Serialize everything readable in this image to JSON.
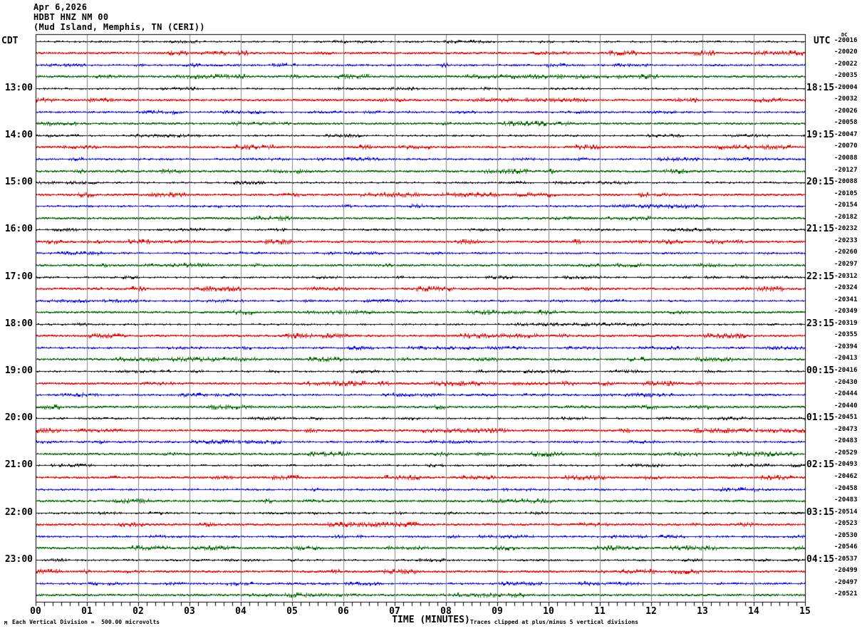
{
  "header": {
    "date": "Apr 6,2026",
    "station": "HDBT HNZ NM 00",
    "location": "(Mud Island, Memphis, TN (CERI))"
  },
  "axes": {
    "left_timezone_label": "CDT",
    "right_timezone_label": "UTC",
    "dc_column_label": "DC",
    "x_axis_title": "TIME (MINUTES)",
    "x_tick_labels": [
      "00",
      "01",
      "02",
      "03",
      "04",
      "05",
      "06",
      "07",
      "08",
      "09",
      "10",
      "11",
      "12",
      "13",
      "14",
      "15"
    ]
  },
  "footer": {
    "corner_mark": "M",
    "scale_note": "Each Vertical Division =  500.00 microvolts",
    "clip_note": "Traces clipped at plus/minus 5 vertical divisions"
  },
  "colors": {
    "background": "#ffffff",
    "frame": "#000000",
    "grid": "#808080",
    "trace_cycle": [
      "#000000",
      "#ee0000",
      "#0000ee",
      "#006400"
    ]
  },
  "chart_data": {
    "type": "line",
    "subtype": "helicorder-seismogram",
    "title": "HDBT HNZ NM 00 (Mud Island, Memphis, TN (CERI)) Apr 6,2026",
    "xlabel": "TIME (MINUTES)",
    "x_range_minutes": [
      0,
      15
    ],
    "minutes_per_row": 15,
    "grid": "vertical lines at each minute",
    "vertical_division_microvolts": 500.0,
    "clip_divisions": 5,
    "trace_color_cycle": [
      "black",
      "red",
      "blue",
      "green"
    ],
    "appearance": "48 quarter-hour rows of low-amplitude ambient noise; no large events visible",
    "left_labels_timezone": "CDT",
    "right_labels_timezone": "UTC",
    "rows": [
      {
        "dc": "-20016",
        "left": "",
        "right": ""
      },
      {
        "dc": "-20020",
        "left": "",
        "right": ""
      },
      {
        "dc": "-20022",
        "left": "",
        "right": ""
      },
      {
        "dc": "-20035",
        "left": "",
        "right": ""
      },
      {
        "dc": "-20004",
        "left": "13:00",
        "right": "18:15"
      },
      {
        "dc": "-20032",
        "left": "",
        "right": ""
      },
      {
        "dc": "-20026",
        "left": "",
        "right": ""
      },
      {
        "dc": "-20058",
        "left": "",
        "right": ""
      },
      {
        "dc": "-20047",
        "left": "14:00",
        "right": "19:15"
      },
      {
        "dc": "-20070",
        "left": "",
        "right": ""
      },
      {
        "dc": "-20088",
        "left": "",
        "right": ""
      },
      {
        "dc": "-20127",
        "left": "",
        "right": ""
      },
      {
        "dc": "-20088",
        "left": "15:00",
        "right": "20:15"
      },
      {
        "dc": "-20105",
        "left": "",
        "right": ""
      },
      {
        "dc": "-20154",
        "left": "",
        "right": ""
      },
      {
        "dc": "-20182",
        "left": "",
        "right": ""
      },
      {
        "dc": "-20232",
        "left": "16:00",
        "right": "21:15"
      },
      {
        "dc": "-20233",
        "left": "",
        "right": ""
      },
      {
        "dc": "-20260",
        "left": "",
        "right": ""
      },
      {
        "dc": "-20297",
        "left": "",
        "right": ""
      },
      {
        "dc": "-20312",
        "left": "17:00",
        "right": "22:15"
      },
      {
        "dc": "-20324",
        "left": "",
        "right": ""
      },
      {
        "dc": "-20341",
        "left": "",
        "right": ""
      },
      {
        "dc": "-20349",
        "left": "",
        "right": ""
      },
      {
        "dc": "-20319",
        "left": "18:00",
        "right": "23:15"
      },
      {
        "dc": "-20355",
        "left": "",
        "right": ""
      },
      {
        "dc": "-20394",
        "left": "",
        "right": ""
      },
      {
        "dc": "-20413",
        "left": "",
        "right": ""
      },
      {
        "dc": "-20416",
        "left": "19:00",
        "right": "00:15"
      },
      {
        "dc": "-20430",
        "left": "",
        "right": ""
      },
      {
        "dc": "-20444",
        "left": "",
        "right": ""
      },
      {
        "dc": "-20440",
        "left": "",
        "right": ""
      },
      {
        "dc": "-20451",
        "left": "20:00",
        "right": "01:15"
      },
      {
        "dc": "-20473",
        "left": "",
        "right": ""
      },
      {
        "dc": "-20483",
        "left": "",
        "right": ""
      },
      {
        "dc": "-20529",
        "left": "",
        "right": ""
      },
      {
        "dc": "-20493",
        "left": "21:00",
        "right": "02:15"
      },
      {
        "dc": "-20462",
        "left": "",
        "right": ""
      },
      {
        "dc": "-20458",
        "left": "",
        "right": ""
      },
      {
        "dc": "-20483",
        "left": "",
        "right": ""
      },
      {
        "dc": "-20514",
        "left": "22:00",
        "right": "03:15"
      },
      {
        "dc": "-20523",
        "left": "",
        "right": ""
      },
      {
        "dc": "-20530",
        "left": "",
        "right": ""
      },
      {
        "dc": "-20546",
        "left": "",
        "right": ""
      },
      {
        "dc": "-20537",
        "left": "23:00",
        "right": "04:15"
      },
      {
        "dc": "-20499",
        "left": "",
        "right": ""
      },
      {
        "dc": "-20497",
        "left": "",
        "right": ""
      },
      {
        "dc": "-20521",
        "left": "",
        "right": ""
      }
    ]
  }
}
